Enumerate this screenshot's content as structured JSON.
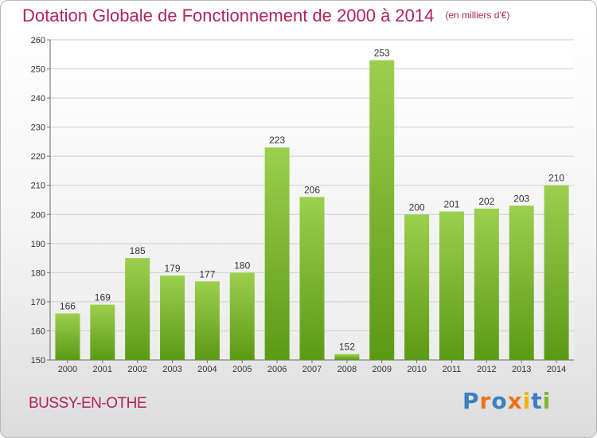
{
  "header": {
    "title": "Dotation Globale de Fonctionnement de 2000 à 2014",
    "unit": "(en milliers d'€)"
  },
  "footer": {
    "place": "BUSSY-EN-OTHE",
    "logo": "Proxiti"
  },
  "colors": {
    "accent": "#b0245e",
    "bar_top": "#9ccf4d",
    "bar_bottom": "#5b9a14"
  },
  "chart_data": {
    "type": "bar",
    "title": "Dotation Globale de Fonctionnement de 2000 à 2014",
    "subtitle": "(en milliers d'€)",
    "xlabel": "",
    "ylabel": "",
    "categories": [
      "2000",
      "2001",
      "2002",
      "2003",
      "2004",
      "2005",
      "2006",
      "2007",
      "2008",
      "2009",
      "2010",
      "2011",
      "2012",
      "2013",
      "2014"
    ],
    "values": [
      166,
      169,
      185,
      179,
      177,
      180,
      223,
      206,
      152,
      253,
      200,
      201,
      202,
      203,
      210
    ],
    "ylim": [
      150,
      260
    ],
    "yticks": [
      150,
      160,
      170,
      180,
      190,
      200,
      210,
      220,
      230,
      240,
      250,
      260
    ],
    "grid": true
  }
}
